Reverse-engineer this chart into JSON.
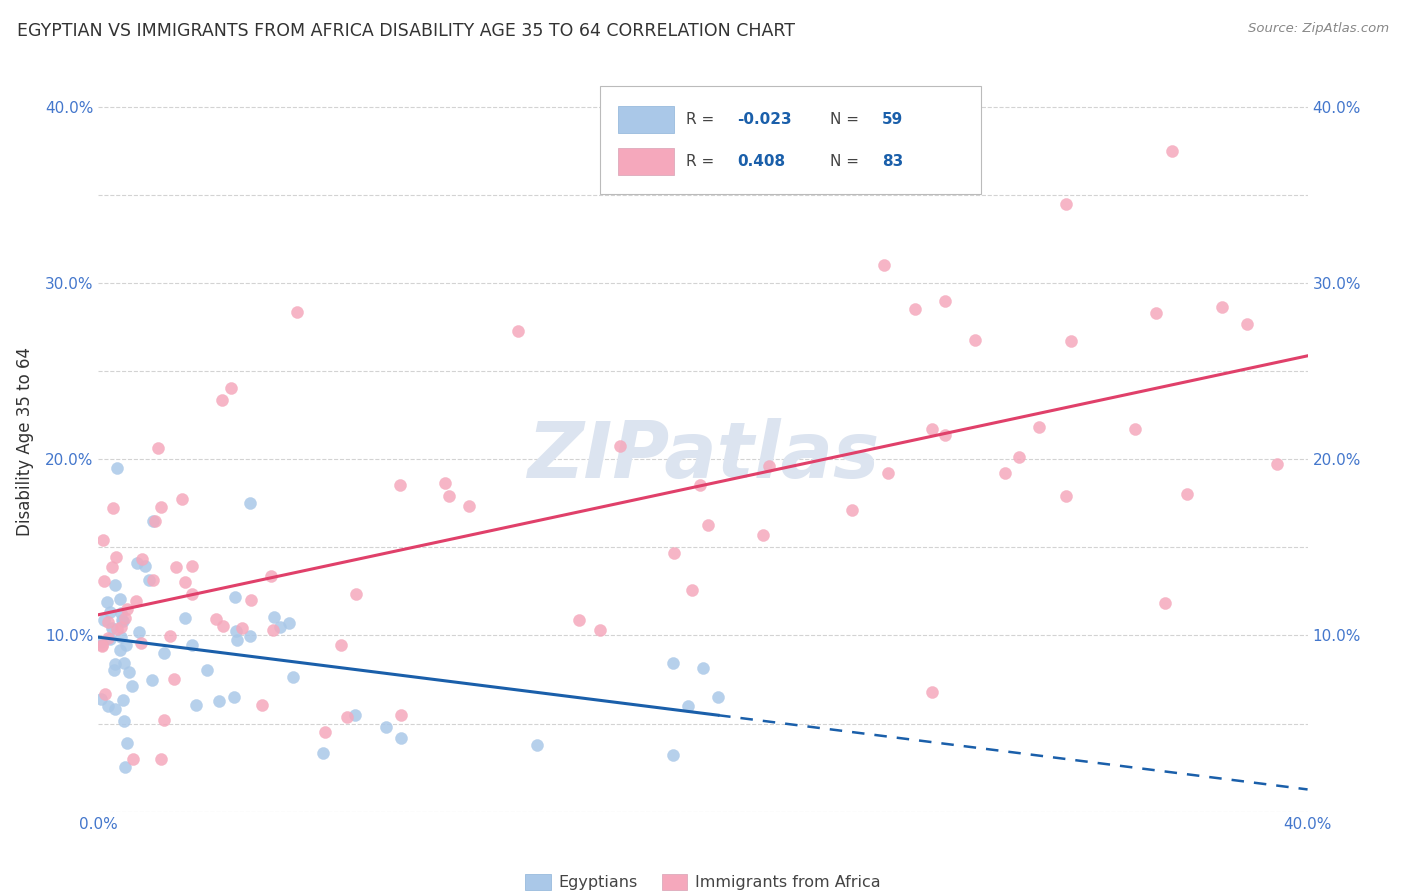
{
  "title": "EGYPTIAN VS IMMIGRANTS FROM AFRICA DISABILITY AGE 35 TO 64 CORRELATION CHART",
  "source": "Source: ZipAtlas.com",
  "ylabel": "Disability Age 35 to 64",
  "xlim": [
    0.0,
    0.4
  ],
  "ylim": [
    0.0,
    0.42
  ],
  "x_tick_positions": [
    0.0,
    0.05,
    0.1,
    0.15,
    0.2,
    0.25,
    0.3,
    0.35,
    0.4
  ],
  "x_tick_labels": [
    "0.0%",
    "",
    "",
    "",
    "",
    "",
    "",
    "",
    "40.0%"
  ],
  "y_tick_positions": [
    0.0,
    0.05,
    0.1,
    0.15,
    0.2,
    0.25,
    0.3,
    0.35,
    0.4
  ],
  "y_tick_labels": [
    "",
    "",
    "10.0%",
    "",
    "20.0%",
    "",
    "30.0%",
    "",
    "40.0%"
  ],
  "r_egyptian": -0.023,
  "n_egyptian": 59,
  "r_africa": 0.408,
  "n_africa": 83,
  "egyptian_color": "#aac8e8",
  "africa_color": "#f5a8bc",
  "trendline_egyptian_color": "#1a5faa",
  "trendline_africa_color": "#e0406a",
  "background_color": "#ffffff",
  "grid_color": "#c8c8c8",
  "watermark": "ZIPatlas",
  "watermark_color": "#dce4f0",
  "legend_labels": [
    "Egyptians",
    "Immigrants from Africa"
  ],
  "tick_color": "#4477cc",
  "title_color": "#333333",
  "source_color": "#888888",
  "ylabel_color": "#333333"
}
